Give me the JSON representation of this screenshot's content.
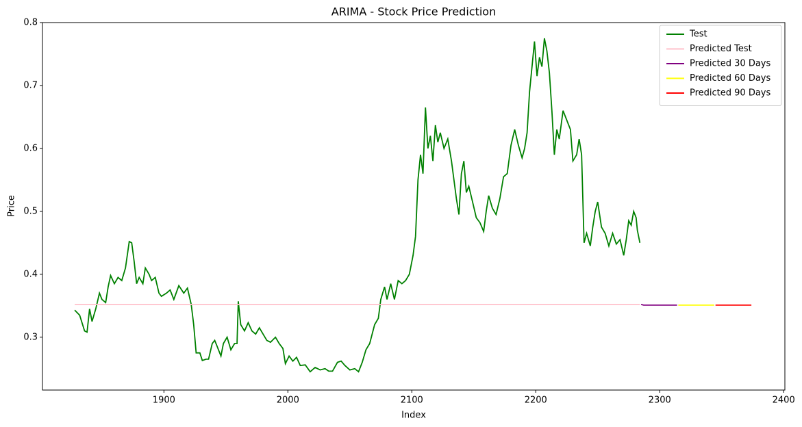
{
  "chart_data": {
    "type": "line",
    "title": "ARIMA - Stock Price Prediction",
    "x_label": "Index",
    "y_label": "Price",
    "xlim": [
      1802,
      2401
    ],
    "ylim": [
      0.216,
      0.8
    ],
    "xticks": [
      1900,
      2000,
      2100,
      2200,
      2300,
      2400
    ],
    "yticks": [
      0.3,
      0.4,
      0.5,
      0.6,
      0.7,
      0.8
    ],
    "legend": "upper right",
    "series": [
      {
        "name": "Test",
        "color": "#008000",
        "x": [
          1828,
          1832,
          1836,
          1838,
          1840,
          1842,
          1845,
          1848,
          1850,
          1853,
          1855,
          1857,
          1860,
          1863,
          1866,
          1869,
          1872,
          1874,
          1876,
          1878,
          1880,
          1883,
          1885,
          1888,
          1890,
          1893,
          1896,
          1898,
          1902,
          1905,
          1908,
          1912,
          1916,
          1919,
          1922,
          1924,
          1926,
          1929,
          1931,
          1934,
          1936,
          1939,
          1941,
          1943,
          1946,
          1948,
          1951,
          1954,
          1957,
          1959,
          1960,
          1962,
          1965,
          1968,
          1971,
          1974,
          1977,
          1980,
          1983,
          1986,
          1990,
          1993,
          1996,
          1998,
          2001,
          2004,
          2007,
          2010,
          2014,
          2018,
          2022,
          2026,
          2030,
          2033,
          2036,
          2040,
          2043,
          2046,
          2050,
          2054,
          2057,
          2060,
          2063,
          2066,
          2070,
          2073,
          2075,
          2078,
          2080,
          2083,
          2086,
          2089,
          2092,
          2095,
          2098,
          2101,
          2103,
          2105,
          2107,
          2109,
          2111,
          2113,
          2115,
          2117,
          2119,
          2121,
          2123,
          2126,
          2129,
          2132,
          2134,
          2136,
          2138,
          2140,
          2142,
          2144,
          2146,
          2149,
          2152,
          2155,
          2158,
          2160,
          2162,
          2165,
          2168,
          2171,
          2174,
          2177,
          2180,
          2183,
          2186,
          2189,
          2191,
          2193,
          2195,
          2197,
          2199,
          2201,
          2203,
          2205,
          2207,
          2209,
          2211,
          2213,
          2215,
          2217,
          2219,
          2222,
          2225,
          2228,
          2230,
          2233,
          2235,
          2237,
          2239,
          2241,
          2244,
          2246,
          2248,
          2250,
          2253,
          2256,
          2259,
          2262,
          2265,
          2268,
          2271,
          2273,
          2275,
          2277,
          2279,
          2281,
          2282,
          2284
        ],
        "values": [
          0.343,
          0.335,
          0.31,
          0.308,
          0.345,
          0.325,
          0.345,
          0.37,
          0.36,
          0.355,
          0.38,
          0.398,
          0.385,
          0.395,
          0.39,
          0.41,
          0.452,
          0.45,
          0.42,
          0.385,
          0.395,
          0.385,
          0.41,
          0.4,
          0.39,
          0.395,
          0.37,
          0.365,
          0.37,
          0.375,
          0.36,
          0.382,
          0.37,
          0.378,
          0.352,
          0.32,
          0.275,
          0.275,
          0.263,
          0.265,
          0.265,
          0.29,
          0.295,
          0.285,
          0.27,
          0.29,
          0.3,
          0.28,
          0.29,
          0.29,
          0.357,
          0.32,
          0.31,
          0.323,
          0.31,
          0.305,
          0.315,
          0.305,
          0.295,
          0.292,
          0.3,
          0.29,
          0.282,
          0.258,
          0.27,
          0.262,
          0.268,
          0.255,
          0.256,
          0.245,
          0.252,
          0.248,
          0.25,
          0.246,
          0.246,
          0.26,
          0.262,
          0.255,
          0.248,
          0.25,
          0.245,
          0.26,
          0.28,
          0.29,
          0.32,
          0.33,
          0.36,
          0.38,
          0.36,
          0.385,
          0.36,
          0.39,
          0.385,
          0.39,
          0.4,
          0.43,
          0.46,
          0.55,
          0.59,
          0.56,
          0.665,
          0.6,
          0.62,
          0.58,
          0.637,
          0.61,
          0.625,
          0.6,
          0.615,
          0.58,
          0.55,
          0.52,
          0.495,
          0.56,
          0.58,
          0.53,
          0.54,
          0.515,
          0.49,
          0.482,
          0.468,
          0.5,
          0.525,
          0.505,
          0.495,
          0.52,
          0.555,
          0.56,
          0.605,
          0.63,
          0.605,
          0.585,
          0.6,
          0.625,
          0.69,
          0.73,
          0.77,
          0.715,
          0.745,
          0.73,
          0.775,
          0.755,
          0.72,
          0.66,
          0.59,
          0.63,
          0.615,
          0.66,
          0.645,
          0.63,
          0.58,
          0.59,
          0.615,
          0.59,
          0.45,
          0.465,
          0.445,
          0.475,
          0.5,
          0.515,
          0.475,
          0.465,
          0.445,
          0.465,
          0.448,
          0.455,
          0.43,
          0.455,
          0.485,
          0.478,
          0.5,
          0.49,
          0.47,
          0.45
        ]
      },
      {
        "name": "Predicted Test",
        "color": "#ffc0cb",
        "x": [
          1828,
          2284
        ],
        "values": [
          0.352,
          0.352
        ]
      },
      {
        "name": "Predicted 30 Days",
        "color": "#800080",
        "x": [
          2285,
          2287,
          2314
        ],
        "values": [
          0.352,
          0.351,
          0.351
        ]
      },
      {
        "name": "Predicted 60 Days",
        "color": "#ffff00",
        "x": [
          2315,
          2344
        ],
        "values": [
          0.351,
          0.351
        ]
      },
      {
        "name": "Predicted 90 Days",
        "color": "#ff0000",
        "x": [
          2345,
          2374
        ],
        "values": [
          0.351,
          0.351
        ]
      }
    ]
  }
}
